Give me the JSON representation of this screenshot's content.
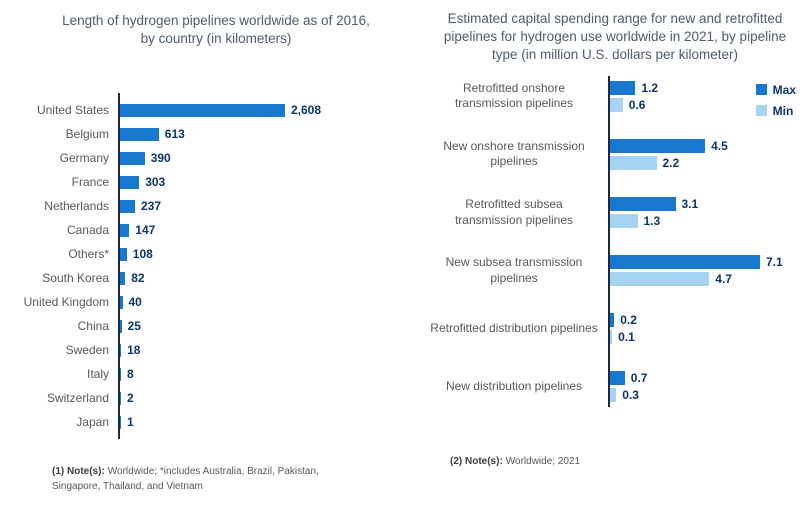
{
  "colors": {
    "bar_max": "#1878cf",
    "bar_min": "#a7d3f3",
    "axis": "#1b2940",
    "value_text": "#0b3567",
    "title_text": "#4e5c70",
    "label_text": "#595959"
  },
  "chart_data": [
    {
      "type": "bar",
      "orientation": "horizontal",
      "title": "Length of hydrogen pipelines worldwide as of 2016, by country (in kilometers)",
      "xlabel": "",
      "ylabel": "",
      "xlim": [
        0,
        2800
      ],
      "grid": false,
      "bar_color": "#1878cf",
      "categories": [
        "United States",
        "Belgium",
        "Germany",
        "France",
        "Netherlands",
        "Canada",
        "Others*",
        "South Korea",
        "United Kingdom",
        "China",
        "Sweden",
        "Italy",
        "Switzerland",
        "Japan"
      ],
      "values": [
        2608,
        613,
        390,
        303,
        237,
        147,
        108,
        82,
        40,
        25,
        18,
        8,
        2,
        1
      ],
      "values_display": [
        "2,608",
        "613",
        "390",
        "303",
        "237",
        "147",
        "108",
        "82",
        "40",
        "25",
        "18",
        "8",
        "2",
        "1"
      ],
      "note_label": "(1) Note(s):",
      "note_text": "Worldwide; *includes Australia, Brazil, Pakistan, Singapore, Thailand, and Vietnam"
    },
    {
      "type": "bar",
      "orientation": "horizontal",
      "grouped": true,
      "title": "Estimated capital spending range for new and retrofitted pipelines for hydrogen use worldwide in 2021, by pipeline type (in million U.S. dollars per kilometer)",
      "xlabel": "",
      "ylabel": "",
      "xlim": [
        0,
        7.5
      ],
      "grid": false,
      "legend_position": "top-right",
      "categories": [
        "Retrofitted onshore transmission pipelines",
        "New onshore transmission pipelines",
        "Retrofitted subsea transmission pipelines",
        "New subsea transmission pipelines",
        "Retrofitted distribution pipelines",
        "New distribution pipelines"
      ],
      "series": [
        {
          "name": "Max",
          "color": "#1878cf",
          "values": [
            1.2,
            4.5,
            3.1,
            7.1,
            0.2,
            0.7
          ],
          "values_display": [
            "1.2",
            "4.5",
            "3.1",
            "7.1",
            "0.2",
            "0.7"
          ]
        },
        {
          "name": "Min",
          "color": "#a7d3f3",
          "values": [
            0.6,
            2.2,
            1.3,
            4.7,
            0.1,
            0.3
          ],
          "values_display": [
            "0.6",
            "2.2",
            "1.3",
            "4.7",
            "0.1",
            "0.3"
          ]
        }
      ],
      "note_label": "(2) Note(s):",
      "note_text": "Worldwide; 2021"
    }
  ]
}
